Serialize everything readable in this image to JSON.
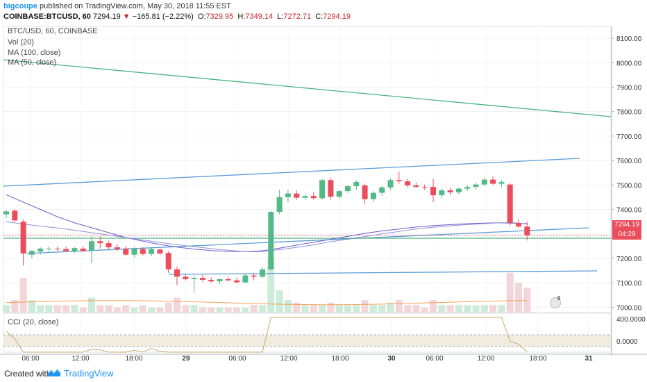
{
  "header": {
    "username": "bigcoupe",
    "published_text": "published on TradingView.com, May 30, 2018 11:55 EST",
    "symbol": "COINBASE:BTCUSD, 60",
    "last": "7294.19",
    "direction_glyph": "▼",
    "change": "−165.81 (−2.22%)",
    "open_label": "O:",
    "open": "7329.95",
    "high_label": "H:",
    "high": "7349.14",
    "low_label": "L:",
    "low": "7272.71",
    "close_label": "C:",
    "close": "7294.19"
  },
  "legends": {
    "main_symbol": "BTC/USD, 60, COINBASE",
    "vol": "Vol (20)",
    "ma100": "MA (100, close)",
    "ma50": "MA (50, close)",
    "cci": "CCI (20, close)"
  },
  "price_axis": [
    "8100.00",
    "8000.00",
    "7900.00",
    "7800.00",
    "7700.00",
    "7600.00",
    "7500.00",
    "7400.00",
    "7300.00",
    "7200.00",
    "7100.00",
    "7000.00"
  ],
  "cci_axis": [
    "400.0000",
    "0.0000"
  ],
  "time_axis": [
    "06:00",
    "12:00",
    "18:00",
    "29",
    "06:00",
    "12:00",
    "18:00",
    "30",
    "06:00",
    "12:00",
    "18:00",
    "31"
  ],
  "price_tags": {
    "current": "7294.19",
    "countdown": "04:29"
  },
  "footer": {
    "created_with": "Created with",
    "brand": "TradingView"
  },
  "events_badge_count": "8",
  "colors": {
    "up": "#53b987",
    "down": "#eb4d5c",
    "trendline": "#5b9bd5",
    "ma100": "#6a5acd",
    "ma50": "#4db380",
    "brand": "#2196f3"
  },
  "chart_data": {
    "type": "candlestick",
    "title": "BTC/USD, 60, COINBASE",
    "interval": "60",
    "ylim": [
      6950,
      8120
    ],
    "x_ticks": [
      "06:00",
      "12:00",
      "18:00",
      "29",
      "06:00",
      "12:00",
      "18:00",
      "30",
      "06:00",
      "12:00",
      "18:00",
      "31"
    ],
    "ohlc": [
      {
        "o": 7380,
        "h": 7395,
        "l": 7365,
        "c": 7392
      },
      {
        "o": 7395,
        "h": 7400,
        "l": 7350,
        "c": 7355
      },
      {
        "o": 7350,
        "h": 7360,
        "l": 7170,
        "c": 7220
      },
      {
        "o": 7215,
        "h": 7235,
        "l": 7200,
        "c": 7230
      },
      {
        "o": 7228,
        "h": 7245,
        "l": 7215,
        "c": 7240
      },
      {
        "o": 7238,
        "h": 7250,
        "l": 7225,
        "c": 7240
      },
      {
        "o": 7240,
        "h": 7250,
        "l": 7230,
        "c": 7238
      },
      {
        "o": 7238,
        "h": 7248,
        "l": 7225,
        "c": 7230
      },
      {
        "o": 7230,
        "h": 7245,
        "l": 7222,
        "c": 7242
      },
      {
        "o": 7240,
        "h": 7250,
        "l": 7225,
        "c": 7230
      },
      {
        "o": 7232,
        "h": 7290,
        "l": 7180,
        "c": 7270
      },
      {
        "o": 7270,
        "h": 7290,
        "l": 7240,
        "c": 7262
      },
      {
        "o": 7262,
        "h": 7272,
        "l": 7235,
        "c": 7245
      },
      {
        "o": 7245,
        "h": 7258,
        "l": 7230,
        "c": 7238
      },
      {
        "o": 7240,
        "h": 7250,
        "l": 7210,
        "c": 7215
      },
      {
        "o": 7215,
        "h": 7245,
        "l": 7205,
        "c": 7240
      },
      {
        "o": 7238,
        "h": 7245,
        "l": 7212,
        "c": 7218
      },
      {
        "o": 7218,
        "h": 7242,
        "l": 7208,
        "c": 7238
      },
      {
        "o": 7236,
        "h": 7240,
        "l": 7215,
        "c": 7220
      },
      {
        "o": 7222,
        "h": 7230,
        "l": 7140,
        "c": 7155
      },
      {
        "o": 7155,
        "h": 7165,
        "l": 7090,
        "c": 7125
      },
      {
        "o": 7125,
        "h": 7135,
        "l": 7110,
        "c": 7115
      },
      {
        "o": 7115,
        "h": 7130,
        "l": 7060,
        "c": 7120
      },
      {
        "o": 7120,
        "h": 7132,
        "l": 7105,
        "c": 7112
      },
      {
        "o": 7112,
        "h": 7122,
        "l": 7100,
        "c": 7106
      },
      {
        "o": 7106,
        "h": 7118,
        "l": 7095,
        "c": 7115
      },
      {
        "o": 7115,
        "h": 7125,
        "l": 7105,
        "c": 7110
      },
      {
        "o": 7110,
        "h": 7120,
        "l": 7098,
        "c": 7102
      },
      {
        "o": 7102,
        "h": 7135,
        "l": 7098,
        "c": 7130
      },
      {
        "o": 7130,
        "h": 7140,
        "l": 7110,
        "c": 7125
      },
      {
        "o": 7125,
        "h": 7165,
        "l": 7118,
        "c": 7155
      },
      {
        "o": 7155,
        "h": 7395,
        "l": 7150,
        "c": 7390
      },
      {
        "o": 7390,
        "h": 7480,
        "l": 7380,
        "c": 7450
      },
      {
        "o": 7450,
        "h": 7480,
        "l": 7430,
        "c": 7465
      },
      {
        "o": 7465,
        "h": 7478,
        "l": 7440,
        "c": 7448
      },
      {
        "o": 7448,
        "h": 7465,
        "l": 7438,
        "c": 7455
      },
      {
        "o": 7455,
        "h": 7470,
        "l": 7440,
        "c": 7446
      },
      {
        "o": 7446,
        "h": 7525,
        "l": 7440,
        "c": 7520
      },
      {
        "o": 7520,
        "h": 7530,
        "l": 7440,
        "c": 7452
      },
      {
        "o": 7452,
        "h": 7480,
        "l": 7445,
        "c": 7475
      },
      {
        "o": 7475,
        "h": 7498,
        "l": 7468,
        "c": 7495
      },
      {
        "o": 7495,
        "h": 7520,
        "l": 7480,
        "c": 7512
      },
      {
        "o": 7498,
        "h": 7505,
        "l": 7420,
        "c": 7442
      },
      {
        "o": 7442,
        "h": 7475,
        "l": 7430,
        "c": 7468
      },
      {
        "o": 7468,
        "h": 7495,
        "l": 7455,
        "c": 7490
      },
      {
        "o": 7490,
        "h": 7528,
        "l": 7480,
        "c": 7520
      },
      {
        "o": 7520,
        "h": 7555,
        "l": 7505,
        "c": 7515
      },
      {
        "o": 7515,
        "h": 7525,
        "l": 7490,
        "c": 7498
      },
      {
        "o": 7498,
        "h": 7510,
        "l": 7488,
        "c": 7492
      },
      {
        "o": 7492,
        "h": 7502,
        "l": 7480,
        "c": 7490
      },
      {
        "o": 7492,
        "h": 7525,
        "l": 7430,
        "c": 7458
      },
      {
        "o": 7458,
        "h": 7485,
        "l": 7448,
        "c": 7478
      },
      {
        "o": 7478,
        "h": 7490,
        "l": 7458,
        "c": 7470
      },
      {
        "o": 7470,
        "h": 7490,
        "l": 7462,
        "c": 7485
      },
      {
        "o": 7485,
        "h": 7500,
        "l": 7475,
        "c": 7492
      },
      {
        "o": 7492,
        "h": 7510,
        "l": 7480,
        "c": 7502
      },
      {
        "o": 7502,
        "h": 7530,
        "l": 7495,
        "c": 7522
      },
      {
        "o": 7522,
        "h": 7535,
        "l": 7500,
        "c": 7505
      },
      {
        "o": 7505,
        "h": 7520,
        "l": 7490,
        "c": 7512
      },
      {
        "o": 7502,
        "h": 7508,
        "l": 7335,
        "c": 7345
      },
      {
        "o": 7345,
        "h": 7360,
        "l": 7325,
        "c": 7330
      },
      {
        "o": 7329.95,
        "h": 7349.14,
        "l": 7272.71,
        "c": 7294.19
      }
    ],
    "ma100": [
      7460,
      7445,
      7430,
      7415,
      7400,
      7385,
      7370,
      7358,
      7345,
      7335,
      7325,
      7315,
      7305,
      7295,
      7285,
      7278,
      7270,
      7263,
      7257,
      7251,
      7246,
      7242,
      7238,
      7235,
      7232,
      7230,
      7228,
      7228,
      7228,
      7229,
      7231,
      7236,
      7242,
      7248,
      7254,
      7260,
      7266,
      7272,
      7278,
      7284,
      7290,
      7296,
      7302,
      7307,
      7312,
      7316,
      7320,
      7324,
      7328,
      7331,
      7334,
      7336,
      7338,
      7340,
      7342,
      7343,
      7344,
      7345,
      7345,
      7344,
      7343,
      7342
    ],
    "ma50": [
      7350,
      7345,
      7340,
      7336,
      7332,
      7328,
      7324,
      7320,
      7315,
      7310,
      7305,
      7300,
      7295,
      7290,
      7285,
      7280,
      7275,
      7270,
      7265,
      7260,
      7256,
      7252,
      7248,
      7244,
      7240,
      7236,
      7233,
      7230,
      7228,
      7227,
      7228,
      7232,
      7236,
      7240,
      7245,
      7250,
      7255,
      7262,
      7268,
      7273,
      7278,
      7284,
      7289,
      7294,
      7300,
      7305,
      7310,
      7315,
      7320,
      7324,
      7327,
      7330,
      7333,
      7336,
      7338,
      7340,
      7342,
      7344,
      7346,
      7346,
      7344,
      7340
    ],
    "volume": [
      3,
      5,
      14,
      5,
      3,
      3,
      3,
      3,
      3,
      2,
      6,
      3,
      3,
      2,
      3,
      2,
      3,
      2,
      2,
      4,
      6,
      3,
      3,
      2,
      2,
      2,
      2,
      2,
      2,
      3,
      3,
      22,
      9,
      5,
      4,
      3,
      3,
      3,
      4,
      3,
      3,
      3,
      5,
      3,
      3,
      4,
      5,
      3,
      3,
      2,
      5,
      3,
      3,
      3,
      3,
      3,
      3,
      3,
      3,
      16,
      12,
      10
    ]
  }
}
